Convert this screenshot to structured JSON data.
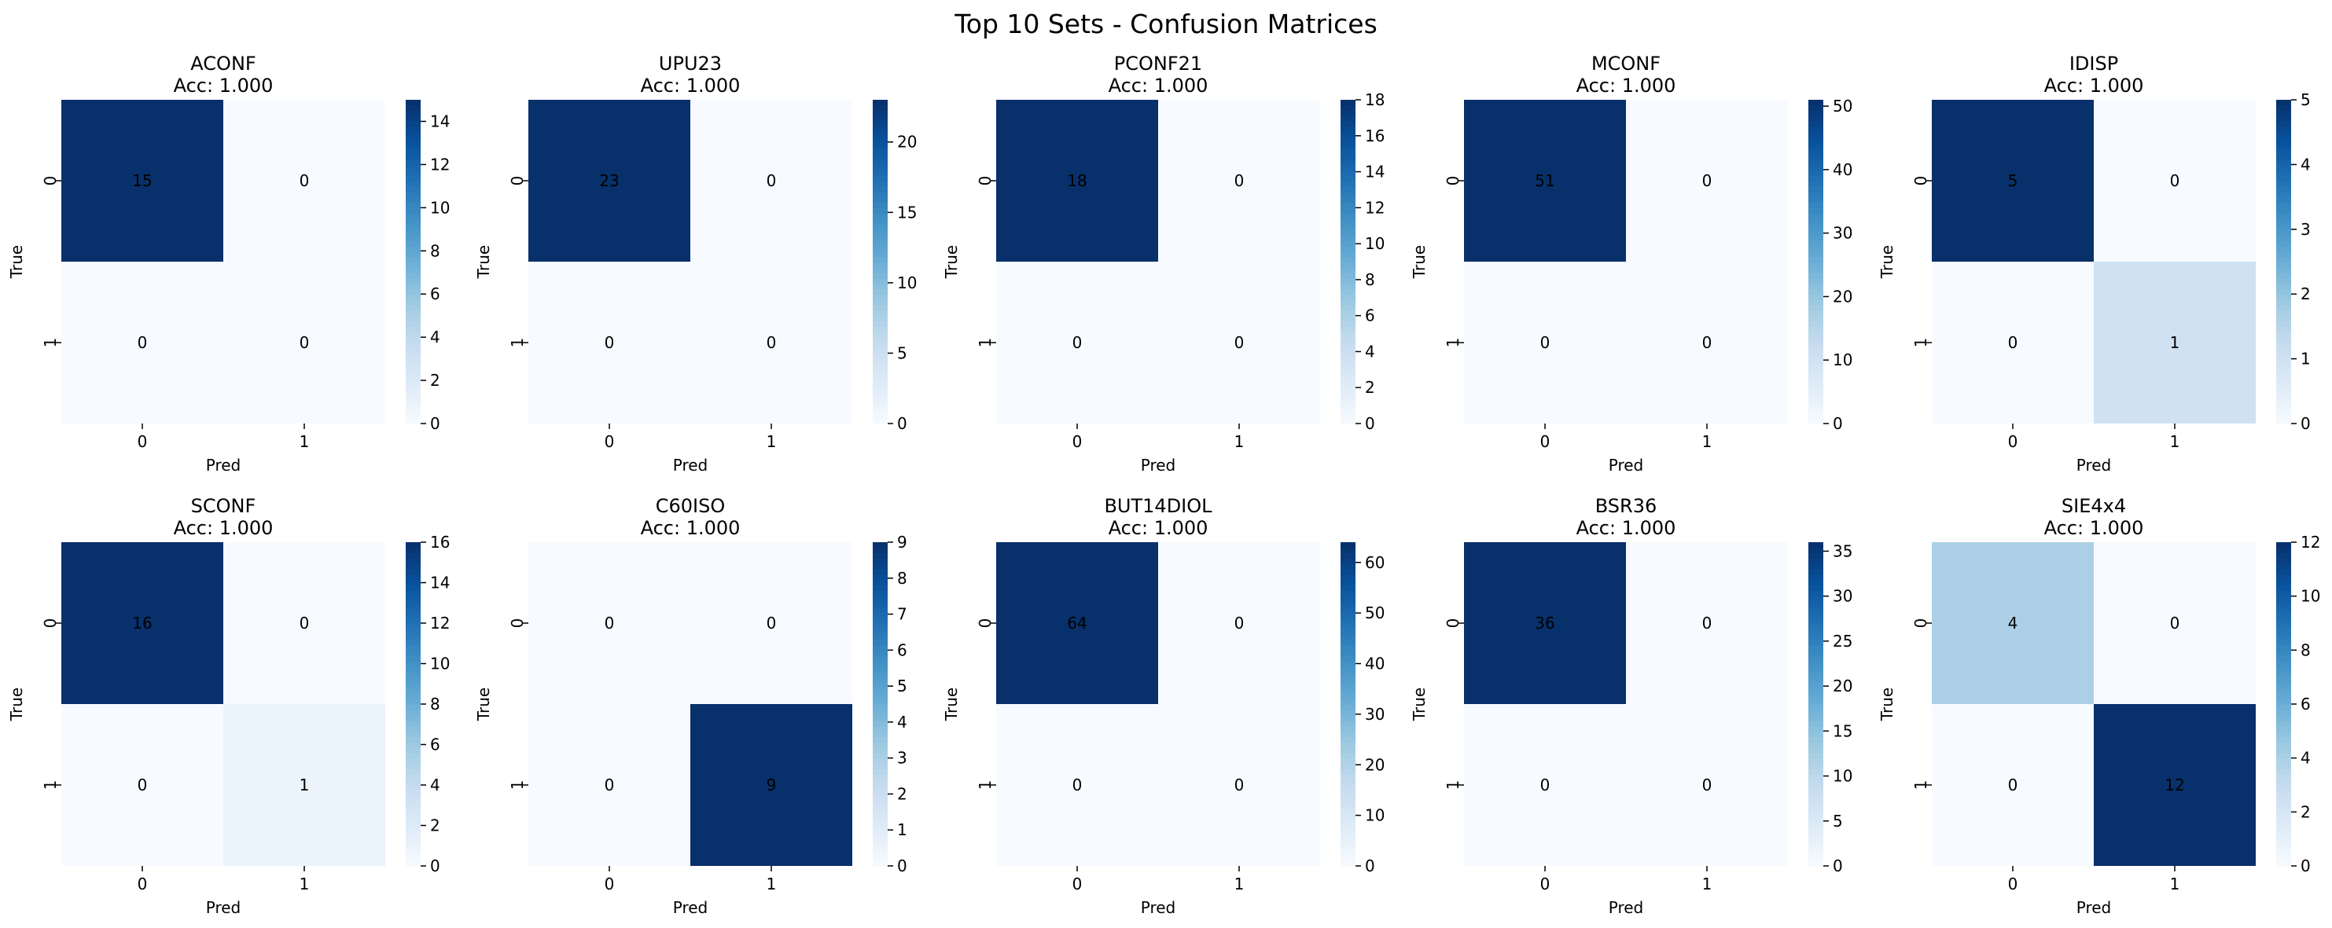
{
  "figure": {
    "title": "Top 10 Sets - Confusion Matrices"
  },
  "colormap": {
    "name": "Blues",
    "stops": [
      "#f7fbff",
      "#deebf7",
      "#c6dbef",
      "#9ecae1",
      "#6baed6",
      "#4292c6",
      "#2171b5",
      "#08519c",
      "#08306b"
    ],
    "light_text": "#ffffff",
    "dark_text": "#262626"
  },
  "chart_data": [
    {
      "type": "heatmap",
      "title": "ACONF",
      "subtitle": "Acc: 1.000",
      "xlabel": "Pred",
      "ylabel": "True",
      "x_ticks": [
        "0",
        "1"
      ],
      "y_ticks": [
        "0",
        "1"
      ],
      "matrix": [
        [
          15,
          0
        ],
        [
          0,
          0
        ]
      ],
      "vmin": 0,
      "vmax": 15,
      "colorbar_ticks": [
        0,
        2,
        4,
        6,
        8,
        10,
        12,
        14
      ]
    },
    {
      "type": "heatmap",
      "title": "UPU23",
      "subtitle": "Acc: 1.000",
      "xlabel": "Pred",
      "ylabel": "True",
      "x_ticks": [
        "0",
        "1"
      ],
      "y_ticks": [
        "0",
        "1"
      ],
      "matrix": [
        [
          23,
          0
        ],
        [
          0,
          0
        ]
      ],
      "vmin": 0,
      "vmax": 23,
      "colorbar_ticks": [
        0,
        5,
        10,
        15,
        20
      ]
    },
    {
      "type": "heatmap",
      "title": "PCONF21",
      "subtitle": "Acc: 1.000",
      "xlabel": "Pred",
      "ylabel": "True",
      "x_ticks": [
        "0",
        "1"
      ],
      "y_ticks": [
        "0",
        "1"
      ],
      "matrix": [
        [
          18,
          0
        ],
        [
          0,
          0
        ]
      ],
      "vmin": 0,
      "vmax": 18,
      "colorbar_ticks": [
        0,
        2,
        4,
        6,
        8,
        10,
        12,
        14,
        16,
        18
      ]
    },
    {
      "type": "heatmap",
      "title": "MCONF",
      "subtitle": "Acc: 1.000",
      "xlabel": "Pred",
      "ylabel": "True",
      "x_ticks": [
        "0",
        "1"
      ],
      "y_ticks": [
        "0",
        "1"
      ],
      "matrix": [
        [
          51,
          0
        ],
        [
          0,
          0
        ]
      ],
      "vmin": 0,
      "vmax": 51,
      "colorbar_ticks": [
        0,
        10,
        20,
        30,
        40,
        50
      ]
    },
    {
      "type": "heatmap",
      "title": "IDISP",
      "subtitle": "Acc: 1.000",
      "xlabel": "Pred",
      "ylabel": "True",
      "x_ticks": [
        "0",
        "1"
      ],
      "y_ticks": [
        "0",
        "1"
      ],
      "matrix": [
        [
          5,
          0
        ],
        [
          0,
          1
        ]
      ],
      "vmin": 0,
      "vmax": 5,
      "colorbar_ticks": [
        0,
        1,
        2,
        3,
        4,
        5
      ]
    },
    {
      "type": "heatmap",
      "title": "SCONF",
      "subtitle": "Acc: 1.000",
      "xlabel": "Pred",
      "ylabel": "True",
      "x_ticks": [
        "0",
        "1"
      ],
      "y_ticks": [
        "0",
        "1"
      ],
      "matrix": [
        [
          16,
          0
        ],
        [
          0,
          1
        ]
      ],
      "vmin": 0,
      "vmax": 16,
      "colorbar_ticks": [
        0,
        2,
        4,
        6,
        8,
        10,
        12,
        14,
        16
      ]
    },
    {
      "type": "heatmap",
      "title": "C60ISO",
      "subtitle": "Acc: 1.000",
      "xlabel": "Pred",
      "ylabel": "True",
      "x_ticks": [
        "0",
        "1"
      ],
      "y_ticks": [
        "0",
        "1"
      ],
      "matrix": [
        [
          0,
          0
        ],
        [
          0,
          9
        ]
      ],
      "vmin": 0,
      "vmax": 9,
      "colorbar_ticks": [
        0,
        1,
        2,
        3,
        4,
        5,
        6,
        7,
        8,
        9
      ]
    },
    {
      "type": "heatmap",
      "title": "BUT14DIOL",
      "subtitle": "Acc: 1.000",
      "xlabel": "Pred",
      "ylabel": "True",
      "x_ticks": [
        "0",
        "1"
      ],
      "y_ticks": [
        "0",
        "1"
      ],
      "matrix": [
        [
          64,
          0
        ],
        [
          0,
          0
        ]
      ],
      "vmin": 0,
      "vmax": 64,
      "colorbar_ticks": [
        0,
        10,
        20,
        30,
        40,
        50,
        60
      ]
    },
    {
      "type": "heatmap",
      "title": "BSR36",
      "subtitle": "Acc: 1.000",
      "xlabel": "Pred",
      "ylabel": "True",
      "x_ticks": [
        "0",
        "1"
      ],
      "y_ticks": [
        "0",
        "1"
      ],
      "matrix": [
        [
          36,
          0
        ],
        [
          0,
          0
        ]
      ],
      "vmin": 0,
      "vmax": 36,
      "colorbar_ticks": [
        0,
        5,
        10,
        15,
        20,
        25,
        30,
        35
      ]
    },
    {
      "type": "heatmap",
      "title": "SIE4x4",
      "subtitle": "Acc: 1.000",
      "xlabel": "Pred",
      "ylabel": "True",
      "x_ticks": [
        "0",
        "1"
      ],
      "y_ticks": [
        "0",
        "1"
      ],
      "matrix": [
        [
          4,
          0
        ],
        [
          0,
          12
        ]
      ],
      "vmin": 0,
      "vmax": 12,
      "colorbar_ticks": [
        0,
        2,
        4,
        6,
        8,
        10,
        12
      ]
    }
  ]
}
